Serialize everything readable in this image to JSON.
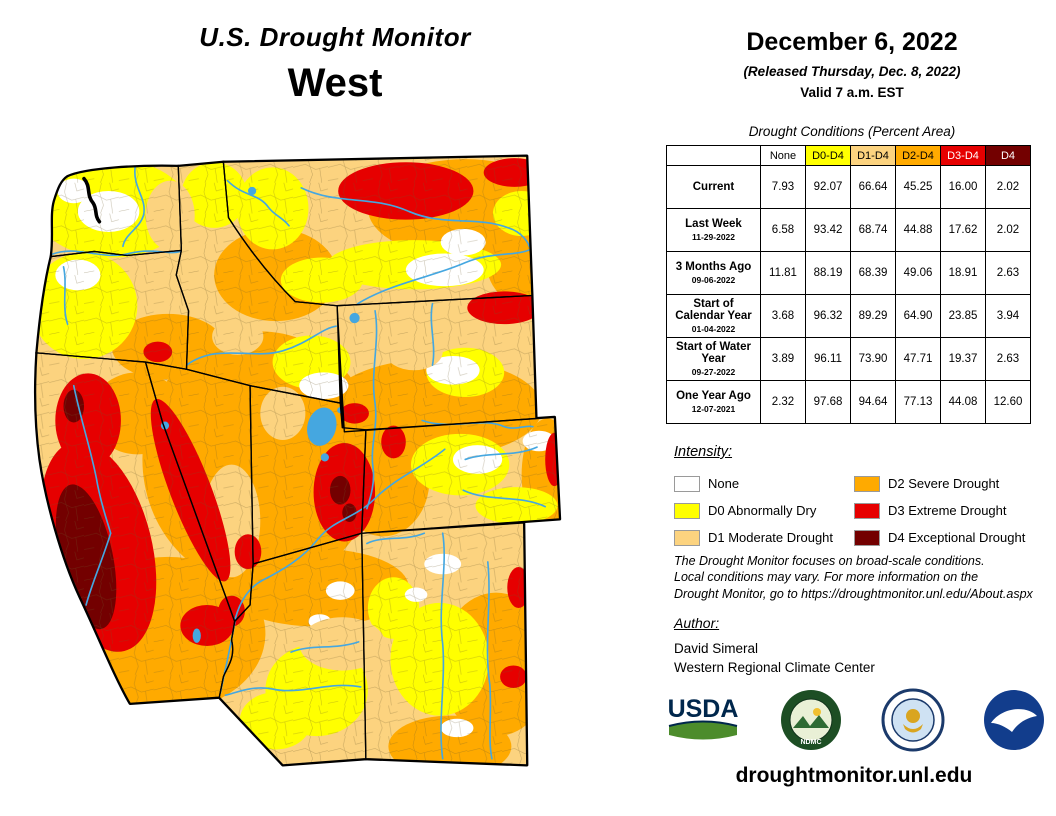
{
  "header": {
    "title": "U.S. Drought Monitor",
    "region": "West",
    "date": "December 6, 2022",
    "released": "(Released Thursday, Dec. 8, 2022)",
    "valid": "Valid 7 a.m. EST"
  },
  "table": {
    "caption": "Drought Conditions (Percent Area)",
    "columns": [
      {
        "label": "None",
        "bg": "#FFFFFF",
        "fg": "#000000"
      },
      {
        "label": "D0-D4",
        "bg": "#FFFF00",
        "fg": "#000000"
      },
      {
        "label": "D1-D4",
        "bg": "#FCD37F",
        "fg": "#000000"
      },
      {
        "label": "D2-D4",
        "bg": "#FFAA00",
        "fg": "#000000"
      },
      {
        "label": "D3-D4",
        "bg": "#E60000",
        "fg": "#FFFFFF"
      },
      {
        "label": "D4",
        "bg": "#730000",
        "fg": "#FFFFFF"
      }
    ],
    "rows": [
      {
        "label": "Current",
        "date": "",
        "values": [
          "7.93",
          "92.07",
          "66.64",
          "45.25",
          "16.00",
          "2.02"
        ]
      },
      {
        "label": "Last Week",
        "date": "11-29-2022",
        "values": [
          "6.58",
          "93.42",
          "68.74",
          "44.88",
          "17.62",
          "2.02"
        ]
      },
      {
        "label": "3 Months Ago",
        "date": "09-06-2022",
        "values": [
          "11.81",
          "88.19",
          "68.39",
          "49.06",
          "18.91",
          "2.63"
        ]
      },
      {
        "label": "Start of Calendar Year",
        "date": "01-04-2022",
        "values": [
          "3.68",
          "96.32",
          "89.29",
          "64.90",
          "23.85",
          "3.94"
        ]
      },
      {
        "label": "Start of Water Year",
        "date": "09-27-2022",
        "values": [
          "3.89",
          "96.11",
          "73.90",
          "47.71",
          "19.37",
          "2.63"
        ]
      },
      {
        "label": "One Year Ago",
        "date": "12-07-2021",
        "values": [
          "2.32",
          "97.68",
          "94.64",
          "77.13",
          "44.08",
          "12.60"
        ]
      }
    ]
  },
  "legend": {
    "heading": "Intensity:",
    "items": [
      {
        "code": "none",
        "label": "None",
        "color": "#FFFFFF"
      },
      {
        "code": "d0",
        "label": "D0 Abnormally Dry",
        "color": "#FFFF00"
      },
      {
        "code": "d1",
        "label": "D1 Moderate Drought",
        "color": "#FCD37F"
      },
      {
        "code": "d2",
        "label": "D2 Severe Drought",
        "color": "#FFAA00"
      },
      {
        "code": "d3",
        "label": "D3 Extreme Drought",
        "color": "#E60000"
      },
      {
        "code": "d4",
        "label": "D4 Exceptional Drought",
        "color": "#730000"
      }
    ]
  },
  "disclaimer": {
    "lines": [
      "The Drought Monitor focuses on broad-scale conditions.",
      "Local conditions may vary. For more information on the",
      "Drought Monitor, go to https://droughtmonitor.unl.edu/About.aspx"
    ]
  },
  "author": {
    "heading": "Author:",
    "name": "David Simeral",
    "organization": "Western Regional Climate Center"
  },
  "logos": [
    {
      "name": "USDA"
    },
    {
      "name": "NDMC"
    },
    {
      "name": "U.S. Department of Commerce"
    },
    {
      "name": "NOAA"
    }
  ],
  "footer": {
    "url": "droughtmonitor.unl.edu"
  },
  "map": {
    "palette": {
      "none": "#FFFFFF",
      "d0": "#FFFF00",
      "d1": "#FCD37F",
      "d2": "#FFAA00",
      "d3": "#E60000",
      "d4": "#730000",
      "water": "#45A7E0",
      "border": "#000000"
    }
  }
}
